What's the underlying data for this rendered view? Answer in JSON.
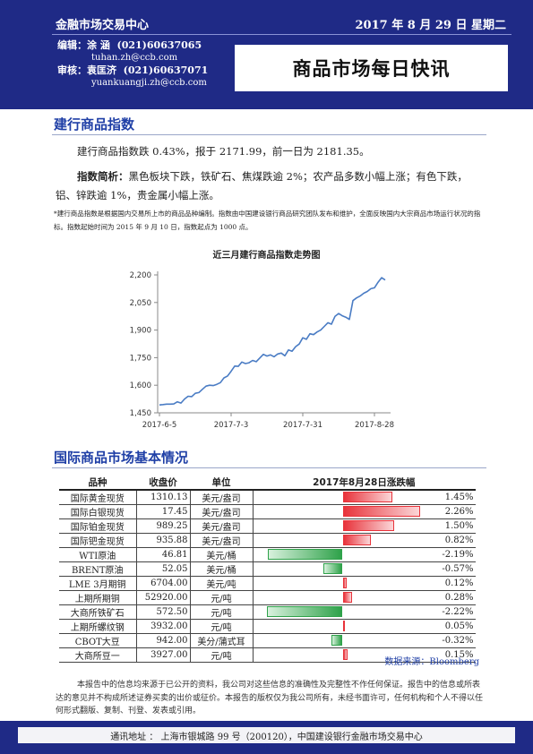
{
  "header": {
    "center_name": "金融市场交易中心",
    "date": "2017 年 8 月 29 日  星期二",
    "editor_label": "编辑：",
    "editor_name": "涂    涵",
    "editor_phone": "(021)60637065",
    "editor_email": "tuhan.zh@ccb.com",
    "reviewer_label": "审核：",
    "reviewer_name": "袁匡济",
    "reviewer_phone": "(021)60637071",
    "reviewer_email": "yuankuangji.zh@ccb.com",
    "report_title": "商品市场每日快讯"
  },
  "section1": {
    "heading": "建行商品指数",
    "summary": "建行商品指数跌 0.43%，报于 2171.99，前一日为 2181.35。",
    "analysis_label": "指数简析：",
    "analysis_text": "黑色板块下跌，铁矿石、焦煤跌逾 2%；农产品多数小幅上涨；有色下跌，铝、锌跌逾 1%，贵金属小幅上涨。",
    "note": "*建行商品指数是根据国内交易所上市的商品品种编制。指数由中国建设银行商品研究团队发布和维护，全面反映国内大宗商品市场运行状况的指标。指数起始时间为 2015 年 9 月 10 日，指数起点为 1000 点。"
  },
  "chart_data": {
    "type": "line",
    "title": "近三月建行商品指数走势图",
    "xlabel": "",
    "ylabel": "",
    "ylim": [
      1450,
      2200
    ],
    "yticks": [
      "1,450",
      "1,600",
      "1,750",
      "1,900",
      "2,050",
      "2,200"
    ],
    "ytick_values": [
      1450,
      1600,
      1750,
      1900,
      2050,
      2200
    ],
    "xticks": [
      "2017-6-5",
      "2017-7-3",
      "2017-7-31",
      "2017-8-28"
    ],
    "grid": false,
    "series": [
      {
        "color": "#4a7cc4",
        "values": [
          1493,
          1495,
          1497,
          1497,
          1498,
          1510,
          1503,
          1525,
          1540,
          1538,
          1556,
          1560,
          1578,
          1595,
          1600,
          1598,
          1605,
          1614,
          1640,
          1650,
          1676,
          1704,
          1703,
          1726,
          1718,
          1722,
          1735,
          1728,
          1748,
          1768,
          1759,
          1765,
          1755,
          1770,
          1775,
          1760,
          1792,
          1785,
          1810,
          1824,
          1858,
          1850,
          1880,
          1875,
          1890,
          1900,
          1920,
          1940,
          1932,
          1975,
          1990,
          1978,
          1970,
          1958,
          2060,
          2075,
          2085,
          2100,
          2110,
          2125,
          2130,
          2160,
          2185,
          2172
        ]
      }
    ]
  },
  "section2": {
    "heading": "国际商品市场基本情况",
    "col_name": "品种",
    "col_close": "收盘价",
    "col_unit": "单位",
    "col_change": "2017年8月28日涨跌幅",
    "source": "数据来源：Bloomberg",
    "rows": [
      {
        "name": "国际黄金现货",
        "close": "1310.13",
        "unit": "美元/盎司",
        "change": "1.45%",
        "value": 1.45
      },
      {
        "name": "国际白银现货",
        "close": "17.45",
        "unit": "美元/盎司",
        "change": "2.26%",
        "value": 2.26
      },
      {
        "name": "国际铂金现货",
        "close": "989.25",
        "unit": "美元/盎司",
        "change": "1.50%",
        "value": 1.5
      },
      {
        "name": "国际钯金现货",
        "close": "935.88",
        "unit": "美元/盎司",
        "change": "0.82%",
        "value": 0.82
      },
      {
        "name": "WTI原油",
        "close": "46.81",
        "unit": "美元/桶",
        "change": "-2.19%",
        "value": -2.19
      },
      {
        "name": "BRENT原油",
        "close": "52.05",
        "unit": "美元/桶",
        "change": "-0.57%",
        "value": -0.57
      },
      {
        "name": "LME 3月期铜",
        "close": "6704.00",
        "unit": "美元/吨",
        "change": "0.12%",
        "value": 0.12
      },
      {
        "name": "上期所期铜",
        "close": "52920.00",
        "unit": "元/吨",
        "change": "0.28%",
        "value": 0.28
      },
      {
        "name": "大商所铁矿石",
        "close": "572.50",
        "unit": "元/吨",
        "change": "-2.22%",
        "value": -2.22
      },
      {
        "name": "上期所螺纹钢",
        "close": "3932.00",
        "unit": "元/吨",
        "change": "0.05%",
        "value": 0.05
      },
      {
        "name": "CBOT大豆",
        "close": "942.00",
        "unit": "美分/蒲式耳",
        "change": "-0.32%",
        "value": -0.32
      },
      {
        "name": "大商所豆一",
        "close": "3927.00",
        "unit": "元/吨",
        "change": "0.15%",
        "value": 0.15
      }
    ]
  },
  "disclaimer": "本报告中的信息均来源于已公开的资料，我公司对这些信息的准确性及完整性不作任何保证。报告中的信息或所表达的意见并不构成所述证券买卖的出价或征价。本报告的版权仅为我公司所有，未经书面许可，任何机构和个人不得以任何形式翻版、复制、刊登、发表或引用。",
  "footer": {
    "address": "通讯地址 ： 上海市银城路 99 号（200120），中国建设银行金融市场交易中心"
  },
  "colors": {
    "header_blue": "#1f2a86",
    "heading_blue": "#1f3fa6",
    "positive_red": "#e8333b",
    "negative_green": "#2fa24a",
    "line_blue": "#4a7cc4"
  }
}
